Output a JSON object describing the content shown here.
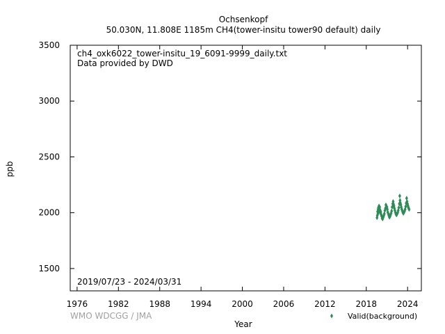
{
  "chart_data": {
    "type": "scatter",
    "title": "Ochsenkopf",
    "subtitle": "50.030N, 11.808E 1185m    CH4(tower-insitu tower90 default) daily",
    "xlabel": "Year",
    "ylabel": "ppb",
    "xlim": [
      1975,
      2026
    ],
    "ylim": [
      1300,
      3500
    ],
    "x_ticks": [
      1976,
      1982,
      1988,
      1994,
      2000,
      2006,
      2012,
      2018,
      2024
    ],
    "y_ticks": [
      1500,
      2000,
      2500,
      3000,
      3500
    ],
    "annotations": {
      "filename": "ch4_oxk6022_tower-insitu_19_6091-9999_daily.txt",
      "provider": "Data provided by DWD",
      "date_range": "2019/07/23 - 2024/03/31"
    },
    "legend_position": "bottom-right",
    "grid": false,
    "series": [
      {
        "name": "Valid(background)",
        "color": "#2e8b57",
        "marker": "diamond",
        "points": [
          [
            2019.56,
            1955
          ],
          [
            2019.6,
            1975
          ],
          [
            2019.64,
            2010
          ],
          [
            2019.68,
            1990
          ],
          [
            2019.72,
            2030
          ],
          [
            2019.76,
            2045
          ],
          [
            2019.8,
            2005
          ],
          [
            2019.85,
            2060
          ],
          [
            2019.9,
            2035
          ],
          [
            2019.95,
            2050
          ],
          [
            2020.0,
            2025
          ],
          [
            2020.05,
            2000
          ],
          [
            2020.1,
            2010
          ],
          [
            2020.16,
            1985
          ],
          [
            2020.22,
            1970
          ],
          [
            2020.3,
            1950
          ],
          [
            2020.38,
            1945
          ],
          [
            2020.46,
            1960
          ],
          [
            2020.54,
            1975
          ],
          [
            2020.62,
            1990
          ],
          [
            2020.7,
            2020
          ],
          [
            2020.78,
            2040
          ],
          [
            2020.85,
            2070
          ],
          [
            2020.92,
            2055
          ],
          [
            2021.0,
            2050
          ],
          [
            2021.06,
            2030
          ],
          [
            2021.12,
            2005
          ],
          [
            2021.2,
            1990
          ],
          [
            2021.28,
            1975
          ],
          [
            2021.36,
            1960
          ],
          [
            2021.44,
            1965
          ],
          [
            2021.52,
            1980
          ],
          [
            2021.6,
            1995
          ],
          [
            2021.68,
            2015
          ],
          [
            2021.76,
            2050
          ],
          [
            2021.84,
            2080
          ],
          [
            2021.9,
            2100
          ],
          [
            2021.96,
            2075
          ],
          [
            2022.02,
            2060
          ],
          [
            2022.08,
            2040
          ],
          [
            2022.16,
            2020
          ],
          [
            2022.24,
            2000
          ],
          [
            2022.32,
            1985
          ],
          [
            2022.4,
            1980
          ],
          [
            2022.48,
            1990
          ],
          [
            2022.56,
            2000
          ],
          [
            2022.64,
            2020
          ],
          [
            2022.72,
            2045
          ],
          [
            2022.8,
            2080
          ],
          [
            2022.86,
            2150
          ],
          [
            2022.9,
            2110
          ],
          [
            2022.96,
            2085
          ],
          [
            2023.02,
            2070
          ],
          [
            2023.08,
            2050
          ],
          [
            2023.16,
            2030
          ],
          [
            2023.24,
            2015
          ],
          [
            2023.32,
            2000
          ],
          [
            2023.4,
            1995
          ],
          [
            2023.48,
            2005
          ],
          [
            2023.56,
            2015
          ],
          [
            2023.64,
            2030
          ],
          [
            2023.72,
            2055
          ],
          [
            2023.8,
            2085
          ],
          [
            2023.86,
            2130
          ],
          [
            2023.92,
            2100
          ],
          [
            2023.98,
            2080
          ],
          [
            2024.04,
            2065
          ],
          [
            2024.1,
            2050
          ],
          [
            2024.16,
            2040
          ],
          [
            2024.22,
            2030
          ]
        ]
      }
    ],
    "watermark": "WMO WDCGG / JMA"
  }
}
